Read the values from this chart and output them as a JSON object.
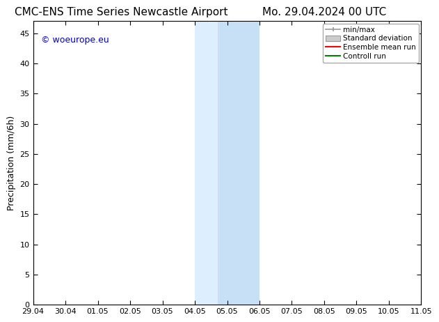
{
  "title_left": "CMC-ENS Time Series Newcastle Airport",
  "title_right": "Mo. 29.04.2024 00 UTC",
  "ylabel": "Precipitation (mm/6h)",
  "ylim": [
    0,
    47
  ],
  "yticks": [
    0,
    5,
    10,
    15,
    20,
    25,
    30,
    35,
    40,
    45
  ],
  "xtick_labels": [
    "29.04",
    "30.04",
    "01.05",
    "02.05",
    "03.05",
    "04.05",
    "05.05",
    "06.05",
    "07.05",
    "08.05",
    "09.05",
    "10.05",
    "11.05"
  ],
  "xtick_positions": [
    0,
    1,
    2,
    3,
    4,
    5,
    6,
    7,
    8,
    9,
    10,
    11,
    12
  ],
  "shaded_region_1_start": 5,
  "shaded_region_1_end": 5.7,
  "shaded_region_2_start": 5.7,
  "shaded_region_2_end": 7,
  "shaded_color_1": "#ddeeff",
  "shaded_color_2": "#c8e0f5",
  "legend_labels": [
    "min/max",
    "Standard deviation",
    "Ensemble mean run",
    "Controll run"
  ],
  "legend_colors_line": [
    "#999999",
    "#bbbbbb",
    "#ff0000",
    "#008000"
  ],
  "watermark": "© woeurope.eu",
  "watermark_color": "#0000cc",
  "bg_color": "#ffffff",
  "title_fontsize": 11,
  "tick_label_fontsize": 8,
  "ylabel_fontsize": 9
}
